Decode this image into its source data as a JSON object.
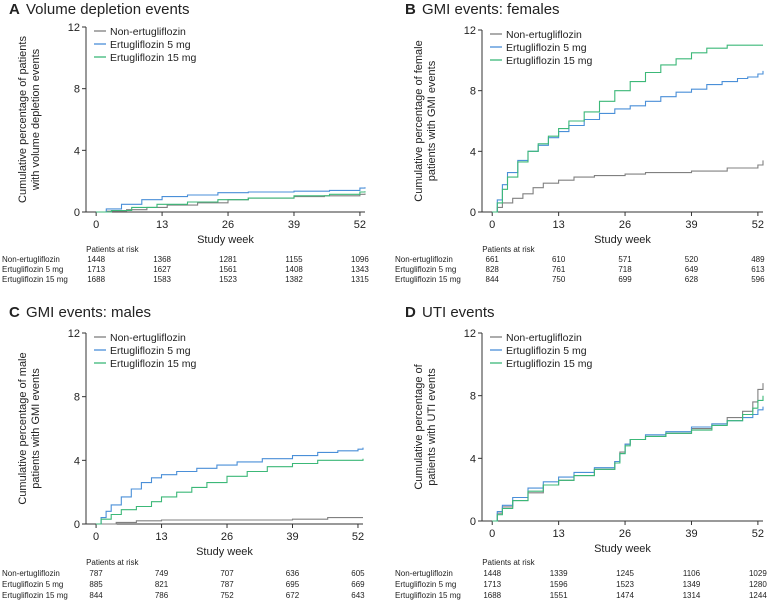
{
  "chart_data": [
    {
      "type": "line",
      "letter": "A",
      "title": "Volume depletion events",
      "ylabel_lines": [
        "Cumulative percentage of patients",
        "with volume depletion events"
      ],
      "xlabel": "Study week",
      "xlim": [
        -2,
        53
      ],
      "ylim": [
        0,
        12
      ],
      "x_ticks": [
        0,
        13,
        26,
        39,
        52
      ],
      "y_ticks": [
        0,
        4,
        8,
        12
      ],
      "legend_position": "top-left",
      "series": [
        {
          "name": "Non-ertugliflozin",
          "color": "#808080",
          "x": [
            0,
            2,
            6,
            10,
            14,
            20,
            26,
            30,
            39,
            45,
            52,
            53
          ],
          "y": [
            0,
            0.05,
            0.15,
            0.3,
            0.45,
            0.6,
            0.8,
            0.9,
            1.0,
            1.05,
            1.15,
            1.2
          ]
        },
        {
          "name": "Ertugliflozin 5 mg",
          "color": "#4a8fd8",
          "x": [
            0,
            2,
            5,
            9,
            13,
            18,
            24,
            30,
            39,
            46,
            52,
            53
          ],
          "y": [
            0,
            0.2,
            0.5,
            0.8,
            1.0,
            1.1,
            1.25,
            1.3,
            1.35,
            1.4,
            1.55,
            1.6
          ]
        },
        {
          "name": "Ertugliflozin 15 mg",
          "color": "#3cb878",
          "x": [
            0,
            3,
            7,
            12,
            18,
            24,
            30,
            39,
            46,
            52,
            53
          ],
          "y": [
            0,
            0.1,
            0.3,
            0.5,
            0.65,
            0.8,
            0.9,
            1.05,
            1.15,
            1.3,
            1.35
          ]
        }
      ],
      "risk_header": "Patients at risk",
      "risk_rows": [
        {
          "label": "Non-ertugliflozin",
          "values": [
            "1448",
            "1368",
            "1281",
            "1155",
            "1096"
          ]
        },
        {
          "label": "Ertugliflozin 5 mg",
          "values": [
            "1713",
            "1627",
            "1561",
            "1408",
            "1343"
          ]
        },
        {
          "label": "Ertugliflozin 15 mg",
          "values": [
            "1688",
            "1583",
            "1523",
            "1382",
            "1315"
          ]
        }
      ]
    },
    {
      "type": "line",
      "letter": "B",
      "title": "GMI events: females",
      "ylabel_lines": [
        "Cumulative percentage of female",
        "patients with GMI events"
      ],
      "xlabel": "Study week",
      "xlim": [
        -2,
        53
      ],
      "ylim": [
        0,
        12
      ],
      "x_ticks": [
        0,
        13,
        26,
        39,
        52
      ],
      "y_ticks": [
        0,
        4,
        8,
        12
      ],
      "legend_position": "top-left",
      "series": [
        {
          "name": "Non-ertugliflozin",
          "color": "#808080",
          "x": [
            0,
            1,
            2,
            4,
            6,
            8,
            10,
            13,
            16,
            20,
            26,
            30,
            39,
            46,
            52,
            53
          ],
          "y": [
            0,
            0.3,
            0.6,
            0.9,
            1.2,
            1.6,
            1.9,
            2.1,
            2.3,
            2.4,
            2.5,
            2.6,
            2.7,
            2.9,
            3.1,
            3.4
          ]
        },
        {
          "name": "Ertugliflozin 5 mg",
          "color": "#4a8fd8",
          "x": [
            0,
            1,
            2,
            3,
            5,
            7,
            9,
            11,
            13,
            15,
            18,
            21,
            24,
            27,
            30,
            33,
            36,
            39,
            42,
            45,
            48,
            50,
            52,
            53
          ],
          "y": [
            0,
            0.8,
            1.8,
            2.6,
            3.4,
            4.0,
            4.4,
            4.9,
            5.3,
            5.7,
            6.1,
            6.5,
            6.8,
            7.0,
            7.3,
            7.6,
            7.9,
            8.1,
            8.4,
            8.6,
            8.8,
            8.9,
            9.1,
            9.3
          ]
        },
        {
          "name": "Ertugliflozin 15 mg",
          "color": "#3cb878",
          "x": [
            0,
            1,
            2,
            3,
            5,
            7,
            9,
            11,
            13,
            15,
            18,
            21,
            24,
            27,
            30,
            33,
            36,
            39,
            42,
            46,
            50,
            53
          ],
          "y": [
            0,
            0.6,
            1.5,
            2.3,
            3.3,
            4.0,
            4.5,
            5.0,
            5.5,
            6.0,
            6.6,
            7.3,
            8.0,
            8.6,
            9.2,
            9.7,
            10.1,
            10.5,
            10.8,
            11.0,
            11.0,
            11.0
          ]
        }
      ],
      "risk_header": "Patients at risk",
      "risk_rows": [
        {
          "label": "Non-ertugliflozin",
          "values": [
            "661",
            "610",
            "571",
            "520",
            "489"
          ]
        },
        {
          "label": "Ertugliflozin 5 mg",
          "values": [
            "828",
            "761",
            "718",
            "649",
            "613"
          ]
        },
        {
          "label": "Ertugliflozin 15 mg",
          "values": [
            "844",
            "750",
            "699",
            "628",
            "596"
          ]
        }
      ]
    },
    {
      "type": "line",
      "letter": "C",
      "title": "GMI events: males",
      "ylabel_lines": [
        "Cumulative percentage of male",
        "patients with GMI events"
      ],
      "xlabel": "Study week",
      "xlim": [
        -2,
        53
      ],
      "ylim": [
        0,
        12
      ],
      "x_ticks": [
        0,
        13,
        26,
        39,
        52
      ],
      "y_ticks": [
        0,
        4,
        8,
        12
      ],
      "legend_position": "top-left",
      "series": [
        {
          "name": "Non-ertugliflozin",
          "color": "#808080",
          "x": [
            0,
            4,
            8,
            13,
            26,
            39,
            46,
            52,
            53
          ],
          "y": [
            0,
            0.1,
            0.2,
            0.25,
            0.25,
            0.3,
            0.4,
            0.4,
            0.4
          ]
        },
        {
          "name": "Ertugliflozin 5 mg",
          "color": "#4a8fd8",
          "x": [
            0,
            1,
            2,
            3,
            5,
            7,
            9,
            11,
            13,
            16,
            20,
            24,
            28,
            33,
            39,
            44,
            48,
            52,
            53
          ],
          "y": [
            0,
            0.4,
            0.8,
            1.2,
            1.7,
            2.2,
            2.6,
            2.9,
            3.1,
            3.3,
            3.5,
            3.7,
            3.9,
            4.1,
            4.3,
            4.5,
            4.6,
            4.7,
            4.8
          ]
        },
        {
          "name": "Ertugliflozin 15 mg",
          "color": "#3cb878",
          "x": [
            0,
            1,
            3,
            5,
            8,
            11,
            13,
            16,
            19,
            22,
            26,
            30,
            34,
            39,
            44,
            48,
            52,
            53
          ],
          "y": [
            0,
            0.3,
            0.6,
            0.9,
            1.1,
            1.4,
            1.7,
            2.0,
            2.3,
            2.6,
            3.0,
            3.3,
            3.6,
            3.8,
            4.0,
            4.0,
            4.0,
            4.1
          ]
        }
      ],
      "risk_header": "Patients at risk",
      "risk_rows": [
        {
          "label": "Non-ertugliflozin",
          "values": [
            "787",
            "749",
            "707",
            "636",
            "605"
          ]
        },
        {
          "label": "Ertugliflozin 5 mg",
          "values": [
            "885",
            "821",
            "787",
            "695",
            "669"
          ]
        },
        {
          "label": "Ertugliflozin 15 mg",
          "values": [
            "844",
            "786",
            "752",
            "672",
            "643"
          ]
        }
      ]
    },
    {
      "type": "line",
      "letter": "D",
      "title": "UTI events",
      "ylabel_lines": [
        "Cumulative percentage of",
        "patients with UTI events"
      ],
      "xlabel": "Study week",
      "xlim": [
        -2,
        53
      ],
      "ylim": [
        0,
        12
      ],
      "x_ticks": [
        0,
        13,
        26,
        39,
        52
      ],
      "y_ticks": [
        0,
        4,
        8,
        12
      ],
      "legend_position": "top-left",
      "series": [
        {
          "name": "Non-ertugliflozin",
          "color": "#808080",
          "x": [
            0,
            1,
            2,
            4,
            7,
            10,
            13,
            16,
            20,
            24,
            25,
            26,
            27,
            30,
            34,
            39,
            43,
            46,
            49,
            51,
            52,
            53
          ],
          "y": [
            0,
            0.5,
            0.9,
            1.3,
            1.8,
            2.3,
            2.6,
            2.9,
            3.3,
            3.8,
            4.4,
            4.9,
            5.2,
            5.4,
            5.6,
            5.9,
            6.2,
            6.6,
            7.0,
            7.6,
            8.4,
            8.8
          ]
        },
        {
          "name": "Ertugliflozin 5 mg",
          "color": "#4a8fd8",
          "x": [
            0,
            1,
            2,
            4,
            7,
            10,
            13,
            16,
            20,
            24,
            25,
            26,
            27,
            30,
            34,
            39,
            43,
            46,
            49,
            51,
            52,
            53
          ],
          "y": [
            0,
            0.6,
            1.0,
            1.5,
            2.1,
            2.5,
            2.8,
            3.1,
            3.4,
            3.8,
            4.3,
            4.9,
            5.2,
            5.5,
            5.7,
            6.0,
            6.2,
            6.4,
            6.6,
            6.8,
            7.1,
            7.3
          ]
        },
        {
          "name": "Ertugliflozin 15 mg",
          "color": "#3cb878",
          "x": [
            0,
            1,
            2,
            4,
            7,
            10,
            13,
            16,
            20,
            24,
            25,
            26,
            27,
            30,
            34,
            39,
            43,
            46,
            49,
            51,
            52,
            53
          ],
          "y": [
            0,
            0.4,
            0.8,
            1.3,
            1.9,
            2.3,
            2.6,
            2.9,
            3.3,
            3.7,
            4.3,
            4.8,
            5.2,
            5.4,
            5.6,
            5.8,
            6.1,
            6.4,
            6.8,
            7.2,
            7.7,
            8.0
          ]
        }
      ],
      "risk_header": "Patients at risk",
      "risk_rows": [
        {
          "label": "Non-ertugliflozin",
          "values": [
            "1448",
            "1339",
            "1245",
            "1106",
            "1029"
          ]
        },
        {
          "label": "Ertugliflozin 5 mg",
          "values": [
            "1713",
            "1596",
            "1523",
            "1349",
            "1280"
          ]
        },
        {
          "label": "Ertugliflozin 15 mg",
          "values": [
            "1688",
            "1551",
            "1474",
            "1314",
            "1244"
          ]
        }
      ]
    }
  ]
}
